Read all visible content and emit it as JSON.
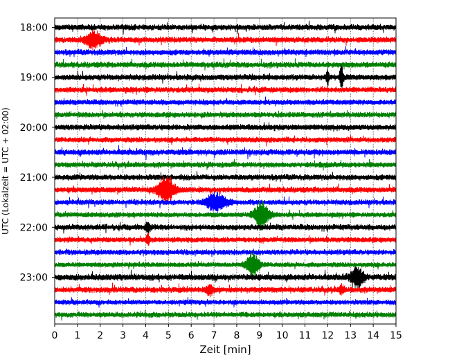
{
  "chart_data": {
    "type": "line",
    "title": "",
    "xlabel": "Zeit  [min]",
    "ylabel": "UTC (Lokalzeit = UTC + 02:00)",
    "xlim": [
      0,
      15
    ],
    "x_ticks": [
      0,
      1,
      2,
      3,
      4,
      5,
      6,
      7,
      8,
      9,
      10,
      11,
      12,
      13,
      14,
      15
    ],
    "x_tick_labels": [
      "0",
      "1",
      "2",
      "3",
      "4",
      "5",
      "6",
      "7",
      "8",
      "9",
      "10",
      "11",
      "12",
      "13",
      "14",
      "15"
    ],
    "y_tick_labels": [
      "18:00",
      "19:00",
      "20:00",
      "21:00",
      "22:00",
      "23:00"
    ],
    "grid": {
      "vertical": true,
      "style": "dotted"
    },
    "trace_colors": [
      "#000000",
      "#ff0000",
      "#0000ff",
      "#008000"
    ],
    "trace_start_times": [
      "18:00",
      "18:15",
      "18:30",
      "18:45",
      "19:00",
      "19:15",
      "19:30",
      "19:45",
      "20:00",
      "20:15",
      "20:30",
      "20:45",
      "21:00",
      "21:15",
      "21:30",
      "21:45",
      "22:00",
      "22:15",
      "22:30",
      "22:45",
      "23:00",
      "23:15",
      "23:30",
      "23:45"
    ],
    "trace_base_amplitude": [
      0.3,
      0.3,
      0.3,
      0.3,
      0.3,
      0.3,
      0.28,
      0.28,
      0.3,
      0.28,
      0.3,
      0.28,
      0.3,
      0.3,
      0.28,
      0.26,
      0.3,
      0.28,
      0.28,
      0.26,
      0.32,
      0.3,
      0.26,
      0.28
    ],
    "events": [
      {
        "trace": 1,
        "x": 1.7,
        "amplitude": 0.65,
        "width": 0.9
      },
      {
        "trace": 4,
        "x": 12.0,
        "amplitude": 0.8,
        "width": 0.15
      },
      {
        "trace": 4,
        "x": 12.6,
        "amplitude": 1.0,
        "width": 0.2
      },
      {
        "trace": 13,
        "x": 4.9,
        "amplitude": 1.05,
        "width": 0.9
      },
      {
        "trace": 14,
        "x": 7.1,
        "amplitude": 0.75,
        "width": 1.1
      },
      {
        "trace": 15,
        "x": 9.1,
        "amplitude": 1.15,
        "width": 0.8
      },
      {
        "trace": 16,
        "x": 4.1,
        "amplitude": 0.35,
        "width": 0.3
      },
      {
        "trace": 17,
        "x": 4.1,
        "amplitude": 0.45,
        "width": 0.2
      },
      {
        "trace": 19,
        "x": 8.7,
        "amplitude": 1.0,
        "width": 0.7
      },
      {
        "trace": 20,
        "x": 13.3,
        "amplitude": 0.85,
        "width": 0.7
      },
      {
        "trace": 21,
        "x": 6.8,
        "amplitude": 0.45,
        "width": 0.4
      },
      {
        "trace": 21,
        "x": 12.6,
        "amplitude": 0.3,
        "width": 0.3
      }
    ]
  }
}
